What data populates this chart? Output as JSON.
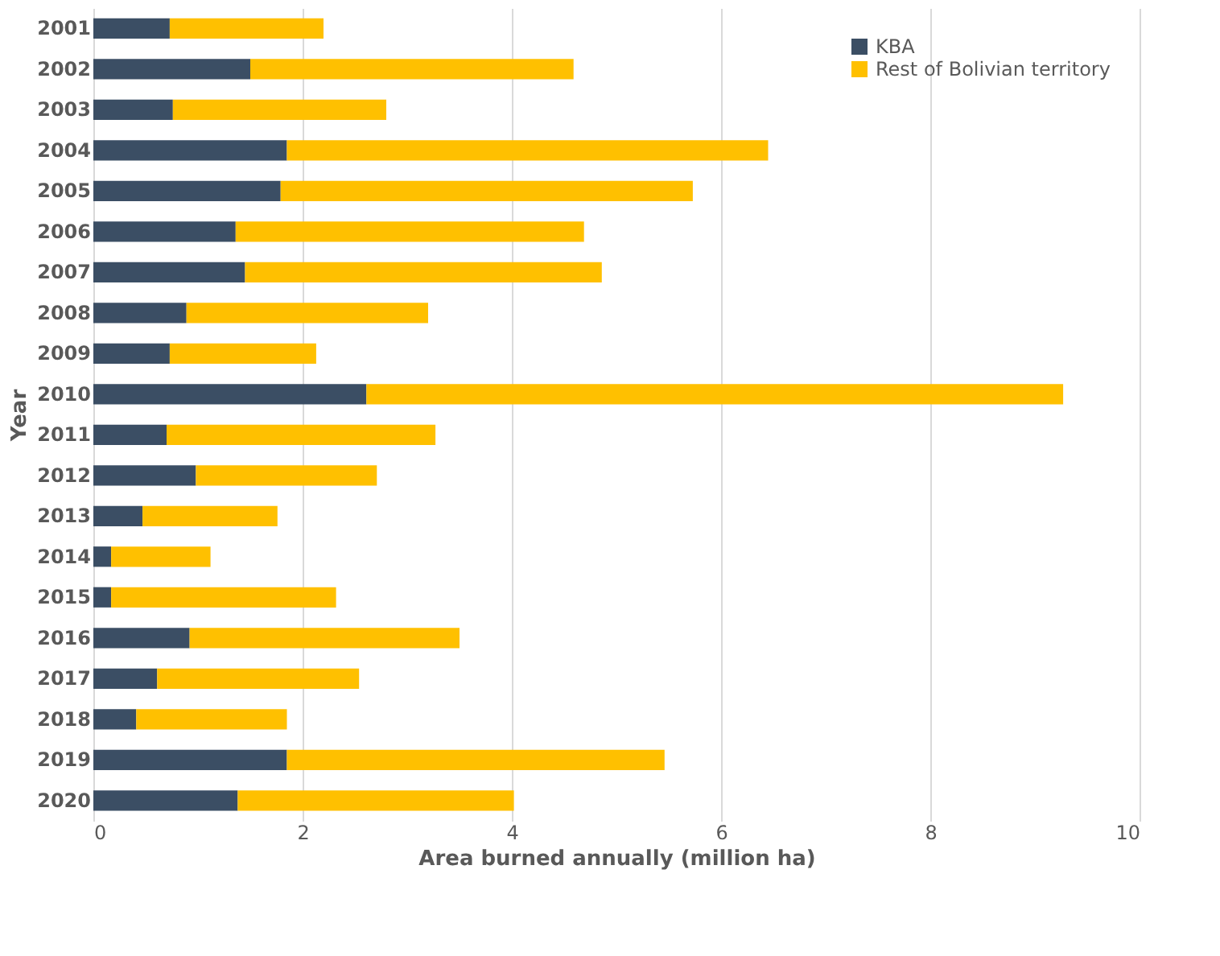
{
  "chart_data": {
    "type": "bar",
    "orientation": "horizontal",
    "stacked": true,
    "xlabel": "Area burned annually (million ha)",
    "ylabel": "Year",
    "categories": [
      "2001",
      "2002",
      "2003",
      "2004",
      "2005",
      "2006",
      "2007",
      "2008",
      "2009",
      "2010",
      "2011",
      "2012",
      "2013",
      "2014",
      "2015",
      "2016",
      "2017",
      "2018",
      "2019",
      "2020"
    ],
    "series": [
      {
        "name": "KBA",
        "color": "#3b4e64",
        "values": [
          0.73,
          1.5,
          0.76,
          1.85,
          1.79,
          1.36,
          1.45,
          0.89,
          0.73,
          2.61,
          0.7,
          0.98,
          0.47,
          0.17,
          0.17,
          0.92,
          0.61,
          0.41,
          1.85,
          1.38
        ]
      },
      {
        "name": "Rest of Bolivian territory",
        "color": "#ffc000",
        "values": [
          1.47,
          3.09,
          2.04,
          4.6,
          3.94,
          3.33,
          3.41,
          2.31,
          1.4,
          6.66,
          2.57,
          1.73,
          1.29,
          0.95,
          2.15,
          2.58,
          1.93,
          1.44,
          3.61,
          2.64
        ]
      }
    ],
    "xlim": [
      0,
      10
    ],
    "xticks": [
      0,
      2,
      4,
      6,
      8,
      10
    ],
    "grid": "x",
    "legend": "top right"
  }
}
